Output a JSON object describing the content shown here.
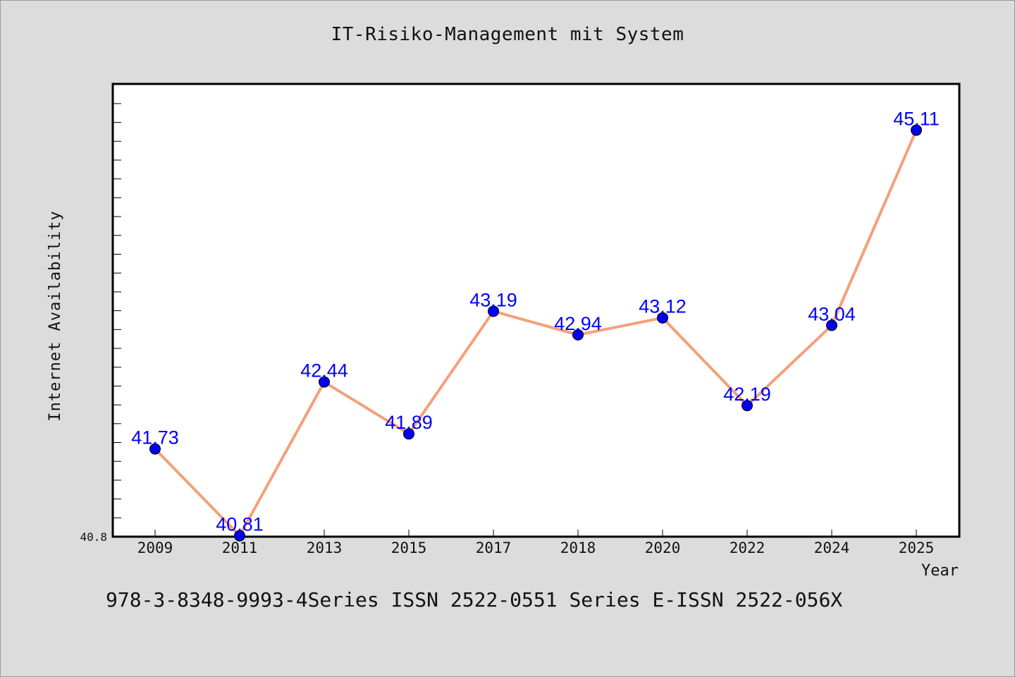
{
  "chart_data": {
    "type": "line",
    "title": "IT-Risiko-Management mit System",
    "xlabel": "Year",
    "ylabel": "Internet Availability",
    "categories": [
      "2009",
      "2011",
      "2013",
      "2015",
      "2017",
      "2018",
      "2020",
      "2022",
      "2024",
      "2025"
    ],
    "values": [
      41.73,
      40.81,
      42.44,
      41.89,
      43.19,
      42.94,
      43.12,
      42.19,
      43.04,
      45.11
    ],
    "data_labels": [
      "41.73",
      "40.81",
      "42.44",
      "41.89",
      "43.19",
      "42.94",
      "43.12",
      "42.19",
      "43.04",
      "45.11"
    ],
    "y_tick_labels": [
      "40.8"
    ],
    "ylim": [
      40.8,
      45.6
    ],
    "grid": false,
    "line_color": "#f4a07a",
    "marker_color": "#0000ee",
    "label_color": "#0000ff"
  },
  "footer_text": "978-3-8348-9993-4Series ISSN 2522-0551 Series E-ISSN 2522-056X"
}
